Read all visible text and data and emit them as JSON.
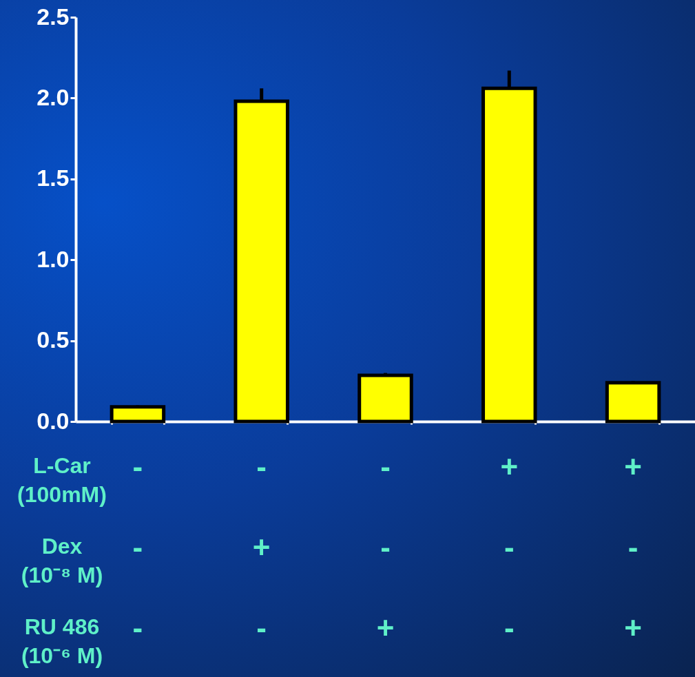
{
  "chart_data": {
    "type": "bar",
    "categories": [
      "-\n-\n-",
      "-\n+\n-",
      "-\n-\n+",
      "+\n-\n-",
      "+\n-\n+"
    ],
    "values": [
      0.09,
      1.98,
      0.285,
      2.06,
      0.24
    ],
    "errors": [
      [
        0.09,
        0.1
      ],
      [
        1.98,
        2.06
      ],
      [
        0.285,
        0.3
      ],
      [
        2.06,
        2.17
      ],
      [
        0.24,
        0.25
      ]
    ],
    "color": "#ffff00",
    "ylim": [
      0,
      2.5
    ],
    "yticks": [
      {
        "value": 0,
        "label": "0.0"
      },
      {
        "value": 0.5,
        "label": "0.5"
      },
      {
        "value": 1,
        "label": "1.0"
      },
      {
        "value": 1.5,
        "label": "1.5"
      },
      {
        "value": 2,
        "label": "2.0"
      },
      {
        "value": 2.5,
        "label": "2.5"
      }
    ],
    "annotations": [
      "L-Car\n(100mM)",
      "Dex\n(10⁻⁸ M)",
      "RU 486\n(10⁻⁶ M)"
    ]
  }
}
